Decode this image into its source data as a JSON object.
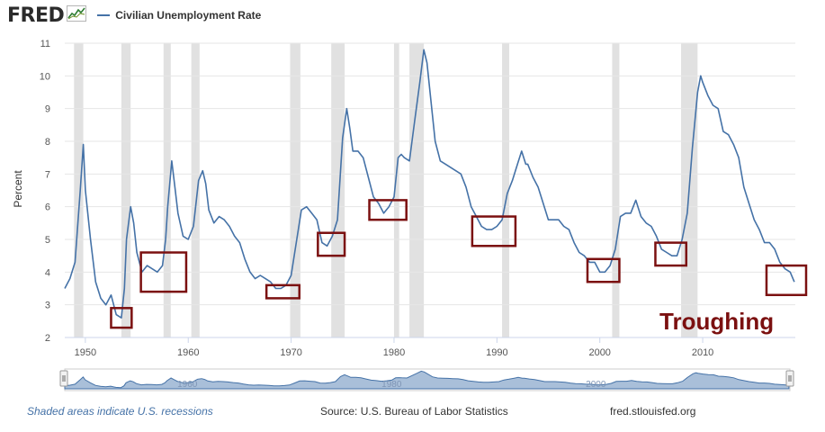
{
  "header": {
    "logo_text": "FRED",
    "logo_icon": "fred-chart-icon",
    "series_legend": "Civilian Unemployment Rate"
  },
  "footer": {
    "recession_note": "Shaded areas indicate U.S. recessions",
    "source": "Source: U.S. Bureau of Labor Statistics",
    "site": "fred.stlouisfed.org"
  },
  "annotation": {
    "label": "Troughing",
    "color": "#7b1010"
  },
  "navigator_labels": [
    "1960",
    "1980",
    "2000"
  ],
  "colors": {
    "series": "#4572a7",
    "recession": "#e1e1e1",
    "box": "#7b1010",
    "navigator_fill": "#a9bfd9"
  },
  "chart_data": {
    "type": "line",
    "title": "",
    "xlabel": "",
    "ylabel": "Percent",
    "xlim": [
      1948,
      2019
    ],
    "ylim": [
      2,
      11
    ],
    "x_ticks": [
      "1950",
      "1960",
      "1970",
      "1980",
      "1990",
      "2000",
      "2010"
    ],
    "y_ticks": [
      "2",
      "3",
      "4",
      "5",
      "6",
      "7",
      "8",
      "9",
      "10",
      "11"
    ],
    "grid": true,
    "legend": "top-left",
    "series": [
      {
        "name": "Civilian Unemployment Rate",
        "x": [
          1948.0,
          1948.5,
          1949.0,
          1949.5,
          1949.8,
          1950.0,
          1950.5,
          1951.0,
          1951.5,
          1952.0,
          1952.5,
          1953.0,
          1953.5,
          1953.8,
          1954.0,
          1954.4,
          1954.7,
          1955.0,
          1955.5,
          1956.0,
          1956.5,
          1957.0,
          1957.5,
          1957.8,
          1958.0,
          1958.4,
          1958.7,
          1959.0,
          1959.5,
          1960.0,
          1960.5,
          1961.0,
          1961.4,
          1961.7,
          1962.0,
          1962.5,
          1963.0,
          1963.5,
          1964.0,
          1964.5,
          1965.0,
          1965.5,
          1966.0,
          1966.5,
          1967.0,
          1967.5,
          1968.0,
          1968.5,
          1969.0,
          1969.5,
          1970.0,
          1970.5,
          1971.0,
          1971.5,
          1972.0,
          1972.5,
          1973.0,
          1973.5,
          1974.0,
          1974.5,
          1975.0,
          1975.4,
          1975.7,
          1976.0,
          1976.5,
          1977.0,
          1977.5,
          1978.0,
          1978.5,
          1979.0,
          1979.5,
          1980.0,
          1980.4,
          1980.7,
          1981.0,
          1981.5,
          1982.0,
          1982.5,
          1982.9,
          1983.2,
          1983.5,
          1984.0,
          1984.5,
          1985.0,
          1985.5,
          1986.0,
          1986.5,
          1987.0,
          1987.5,
          1988.0,
          1988.5,
          1989.0,
          1989.5,
          1990.0,
          1990.5,
          1991.0,
          1991.5,
          1992.0,
          1992.4,
          1992.8,
          1993.0,
          1993.5,
          1994.0,
          1994.5,
          1995.0,
          1995.5,
          1996.0,
          1996.5,
          1997.0,
          1997.5,
          1998.0,
          1998.5,
          1999.0,
          1999.5,
          2000.0,
          2000.5,
          2001.0,
          2001.5,
          2002.0,
          2002.5,
          2003.0,
          2003.5,
          2004.0,
          2004.5,
          2005.0,
          2005.5,
          2006.0,
          2006.5,
          2007.0,
          2007.5,
          2008.0,
          2008.5,
          2009.0,
          2009.5,
          2009.8,
          2010.0,
          2010.5,
          2011.0,
          2011.5,
          2012.0,
          2012.5,
          2013.0,
          2013.5,
          2014.0,
          2014.5,
          2015.0,
          2015.5,
          2016.0,
          2016.5,
          2017.0,
          2017.5,
          2018.0,
          2018.5,
          2018.9
        ],
        "values": [
          3.5,
          3.8,
          4.3,
          6.5,
          7.9,
          6.5,
          5.0,
          3.7,
          3.2,
          3.0,
          3.3,
          2.7,
          2.6,
          3.5,
          5.0,
          6.0,
          5.5,
          4.6,
          4.0,
          4.2,
          4.1,
          4.0,
          4.2,
          5.0,
          6.0,
          7.4,
          6.6,
          5.8,
          5.1,
          5.0,
          5.4,
          6.8,
          7.1,
          6.7,
          5.9,
          5.5,
          5.7,
          5.6,
          5.4,
          5.1,
          4.9,
          4.4,
          4.0,
          3.8,
          3.9,
          3.8,
          3.7,
          3.5,
          3.5,
          3.6,
          3.9,
          4.9,
          5.9,
          6.0,
          5.8,
          5.6,
          4.9,
          4.8,
          5.1,
          5.6,
          8.1,
          9.0,
          8.4,
          7.7,
          7.7,
          7.5,
          6.9,
          6.3,
          6.1,
          5.8,
          6.0,
          6.3,
          7.5,
          7.6,
          7.5,
          7.4,
          8.6,
          9.8,
          10.8,
          10.4,
          9.5,
          8.0,
          7.4,
          7.3,
          7.2,
          7.1,
          7.0,
          6.6,
          6.0,
          5.7,
          5.4,
          5.3,
          5.3,
          5.4,
          5.6,
          6.4,
          6.8,
          7.3,
          7.7,
          7.3,
          7.3,
          6.9,
          6.6,
          6.1,
          5.6,
          5.6,
          5.6,
          5.4,
          5.3,
          4.9,
          4.6,
          4.5,
          4.3,
          4.3,
          4.0,
          4.0,
          4.2,
          4.7,
          5.7,
          5.8,
          5.8,
          6.2,
          5.7,
          5.5,
          5.4,
          5.1,
          4.7,
          4.6,
          4.5,
          4.5,
          5.0,
          5.8,
          7.8,
          9.5,
          10.0,
          9.8,
          9.4,
          9.1,
          9.0,
          8.3,
          8.2,
          7.9,
          7.5,
          6.6,
          6.1,
          5.6,
          5.3,
          4.9,
          4.9,
          4.7,
          4.3,
          4.1,
          4.0,
          3.7
        ]
      }
    ],
    "recessions": [
      [
        1948.9,
        1949.8
      ],
      [
        1953.5,
        1954.4
      ],
      [
        1957.6,
        1958.3
      ],
      [
        1960.3,
        1961.1
      ],
      [
        1969.9,
        1970.9
      ],
      [
        1973.9,
        1975.2
      ],
      [
        1980.0,
        1980.5
      ],
      [
        1981.5,
        1982.9
      ],
      [
        1990.5,
        1991.2
      ],
      [
        2001.2,
        2001.9
      ],
      [
        2007.9,
        2009.5
      ]
    ],
    "trough_boxes": [
      {
        "x": [
          1952.5,
          1954.5
        ],
        "y": [
          2.3,
          2.9
        ]
      },
      {
        "x": [
          1955.4,
          1959.8
        ],
        "y": [
          3.4,
          4.6
        ]
      },
      {
        "x": [
          1967.6,
          1970.8
        ],
        "y": [
          3.2,
          3.6
        ]
      },
      {
        "x": [
          1972.6,
          1975.2
        ],
        "y": [
          4.5,
          5.2
        ]
      },
      {
        "x": [
          1977.6,
          1981.2
        ],
        "y": [
          5.6,
          6.2
        ]
      },
      {
        "x": [
          1987.6,
          1991.8
        ],
        "y": [
          4.8,
          5.7
        ]
      },
      {
        "x": [
          1998.8,
          2001.9
        ],
        "y": [
          3.7,
          4.4
        ]
      },
      {
        "x": [
          2005.4,
          2008.4
        ],
        "y": [
          4.2,
          4.9
        ]
      },
      {
        "x": [
          2016.2,
          2020.2
        ],
        "y": [
          3.3,
          4.2
        ]
      }
    ]
  }
}
